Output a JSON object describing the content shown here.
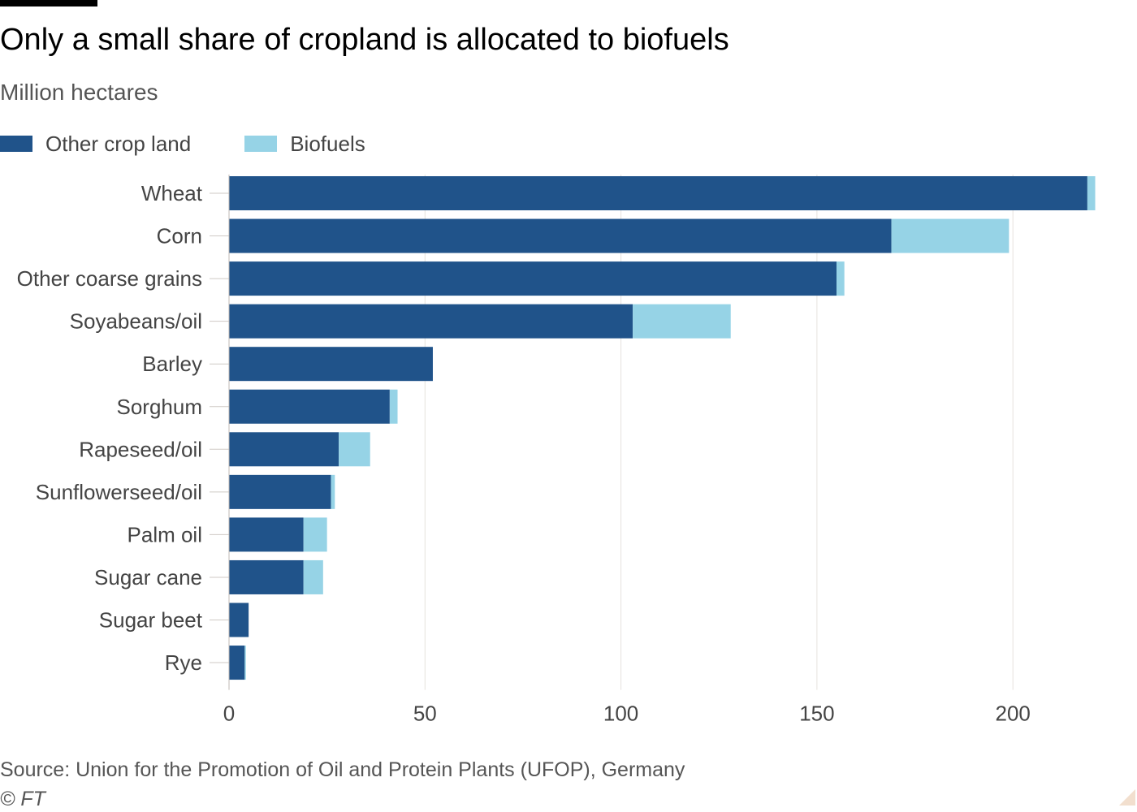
{
  "title": "Only a small share of cropland is allocated to biofuels",
  "subtitle": "Million hectares",
  "legend": {
    "other": "Other crop land",
    "biofuels": "Biofuels"
  },
  "colors": {
    "other": "#20538a",
    "biofuels": "#96d3e6",
    "grid": "#e6e2de",
    "text": "#444444"
  },
  "source": "Source: Union for the Promotion of Oil and Protein Plants (UFOP), Germany",
  "credit": "© FT",
  "chart_data": {
    "type": "bar",
    "orientation": "horizontal",
    "stacked": true,
    "categories": [
      "Wheat",
      "Corn",
      "Other coarse grains",
      "Soyabeans/oil",
      "Barley",
      "Sorghum",
      "Rapeseed/oil",
      "Sunflowerseed/oil",
      "Palm oil",
      "Sugar cane",
      "Sugar beet",
      "Rye"
    ],
    "series": [
      {
        "name": "Other crop land",
        "values": [
          219,
          169,
          155,
          103,
          52,
          41,
          28,
          26,
          19,
          19,
          5,
          4
        ]
      },
      {
        "name": "Biofuels",
        "values": [
          2,
          30,
          2,
          25,
          0,
          2,
          8,
          1,
          6,
          5,
          0,
          0.3
        ]
      }
    ],
    "xlim": [
      0,
      221
    ],
    "xticks": [
      0,
      50,
      100,
      150,
      200
    ],
    "grid": true,
    "legend_position": "top-left",
    "xlabel": "",
    "ylabel": ""
  }
}
